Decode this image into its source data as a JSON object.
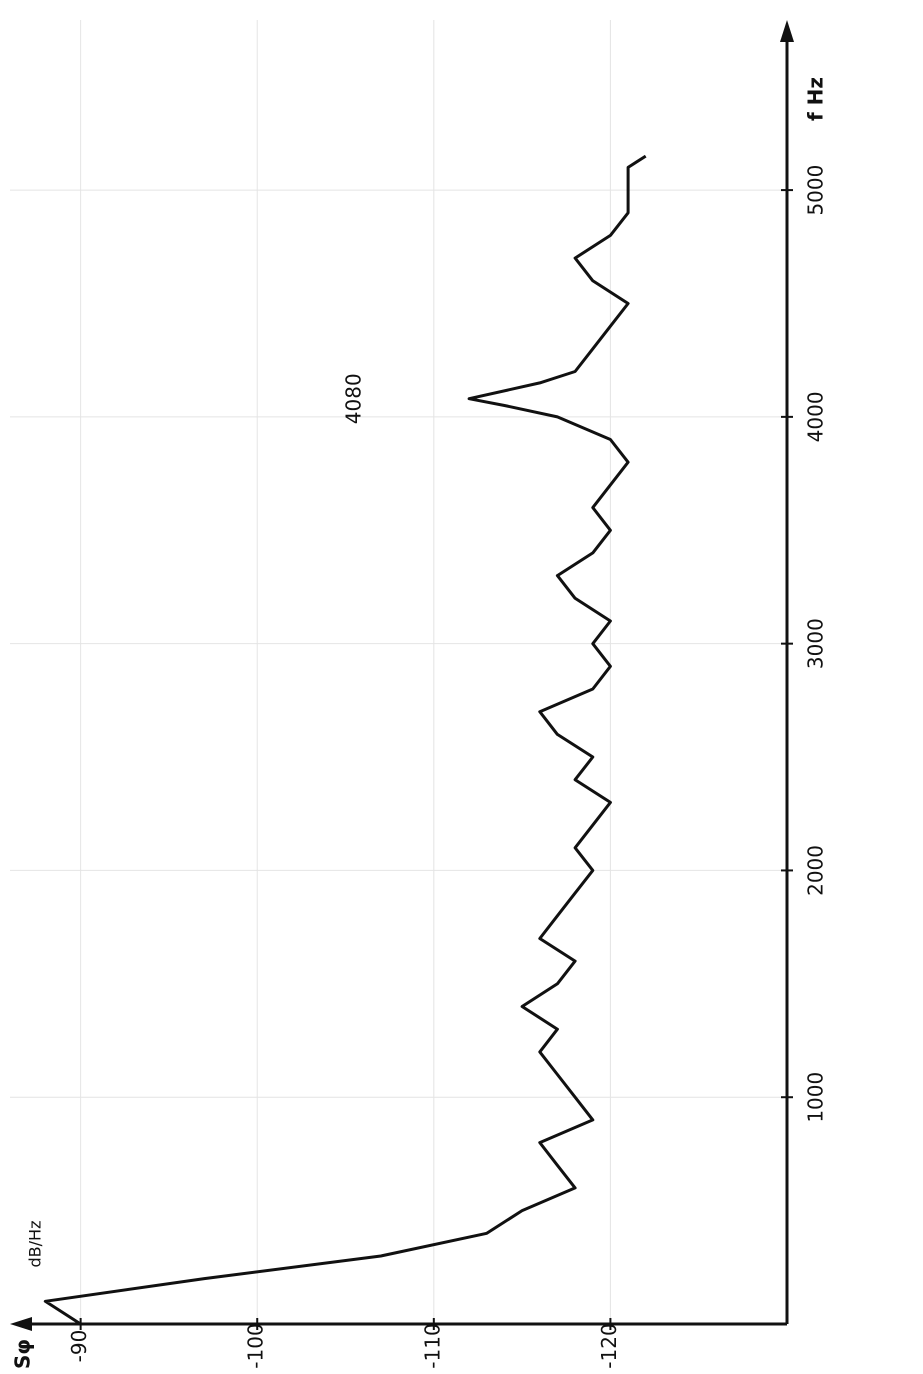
{
  "chart_data": {
    "type": "line",
    "y_label": "Sφ",
    "y_unit": "dB/Hz",
    "x_label": "f Hz",
    "x": [
      0,
      100,
      200,
      300,
      400,
      500,
      600,
      700,
      800,
      900,
      1000,
      1100,
      1200,
      1300,
      1400,
      1500,
      1600,
      1700,
      1800,
      1900,
      2000,
      2100,
      2200,
      2300,
      2400,
      2500,
      2600,
      2700,
      2800,
      2900,
      3000,
      3100,
      3200,
      3300,
      3400,
      3500,
      3600,
      3700,
      3800,
      3900,
      4000,
      4050,
      4080,
      4150,
      4200,
      4300,
      4400,
      4500,
      4600,
      4700,
      4800,
      4900,
      5000,
      5100,
      5150
    ],
    "series": [
      {
        "color": "#111111",
        "values": [
          -90,
          -88,
          -97,
          -107,
          -113,
          -115,
          -118,
          -117,
          -116,
          -119,
          -118,
          -117,
          -116,
          -117,
          -115,
          -117,
          -118,
          -116,
          -117,
          -118,
          -119,
          -118,
          -119,
          -120,
          -118,
          -119,
          -117,
          -116,
          -119,
          -120,
          -119,
          -120,
          -118,
          -117,
          -119,
          -120,
          -119,
          -120,
          -121,
          -120,
          -117,
          -114,
          -112,
          -116,
          -118,
          -119,
          -120,
          -121,
          -119,
          -118,
          -120,
          -121,
          -121,
          -121,
          -122
        ]
      }
    ],
    "annotations": [
      {
        "text": "4080",
        "x": 4080
      }
    ],
    "xlim": [
      0,
      5750
    ],
    "ylim": [
      -130,
      -86
    ],
    "xticks": [
      1000,
      2000,
      3000,
      4000,
      5000
    ],
    "yticks": [
      -90,
      -100,
      -110,
      -120
    ],
    "grid": true
  }
}
